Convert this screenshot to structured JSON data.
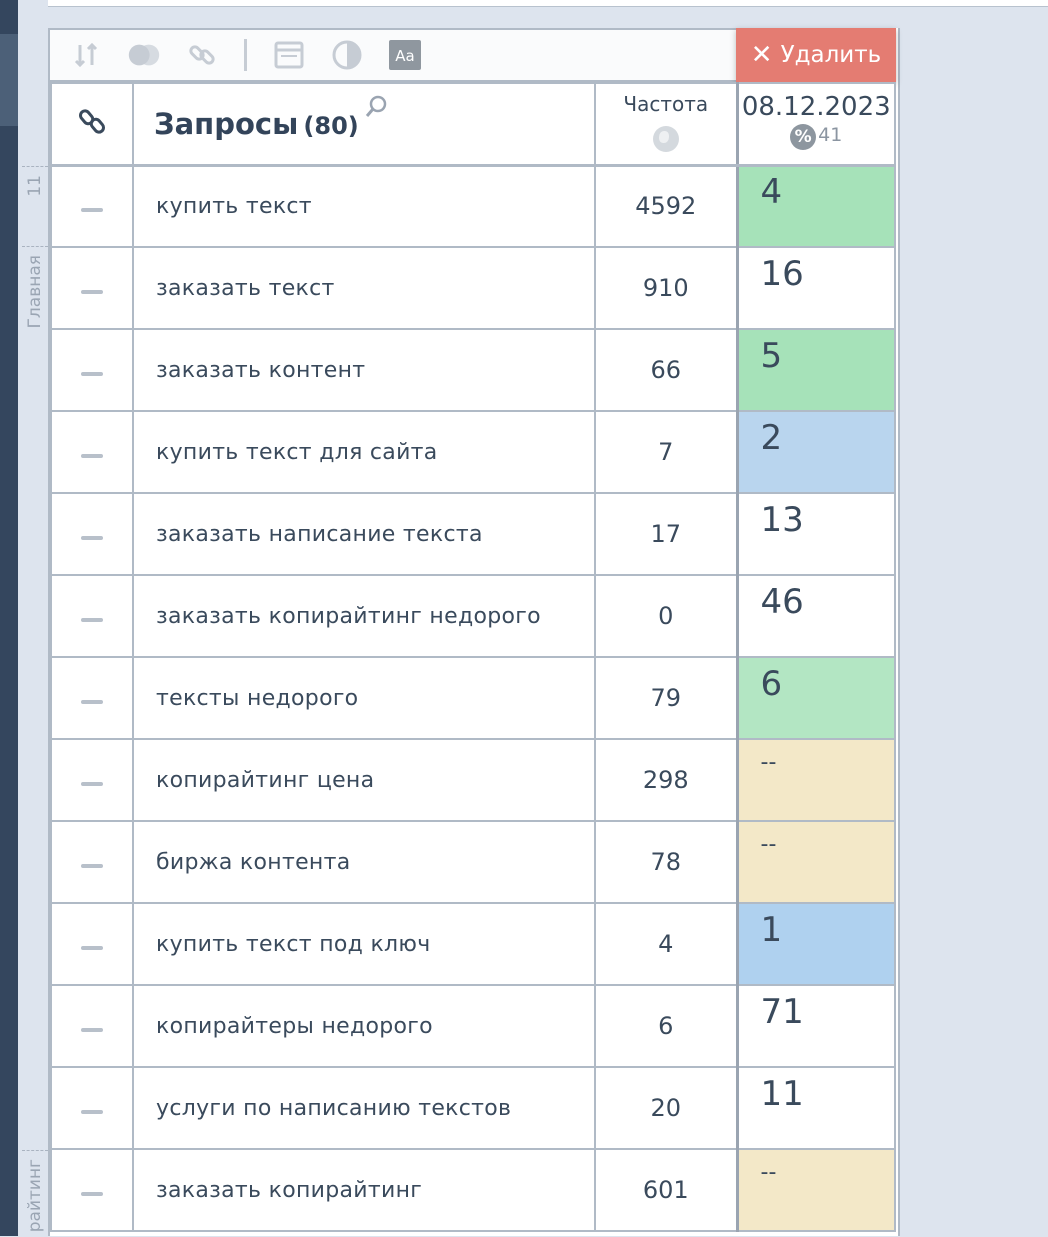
{
  "toolbar": {
    "delete_label": "Удалить",
    "icons": [
      "sort-icon",
      "toggle-icon",
      "link-icon",
      "window-icon",
      "contrast-icon",
      "font-icon"
    ],
    "font_icon_label": "Aa"
  },
  "groups": [
    {
      "label": "11"
    },
    {
      "label": "Главная"
    },
    {
      "label": "райтинг"
    }
  ],
  "header": {
    "query_title": "Запросы",
    "query_count": "(80)",
    "freq_title": "Частота",
    "date": "08.12.2023",
    "percent_symbol": "%",
    "percent_value": "41"
  },
  "colors": {
    "green": "#a6e2b9",
    "light_green": "#b3e6c3",
    "blue": "#b9d5ee",
    "sand": "#f3e8c8",
    "white": "#ffffff",
    "delete": "#e47c72"
  },
  "rows": [
    {
      "query": "купить текст",
      "freq": "4592",
      "pos": "4",
      "color": "#a6e2b9"
    },
    {
      "query": "заказать текст",
      "freq": "910",
      "pos": "16",
      "color": "#ffffff"
    },
    {
      "query": "заказать контент",
      "freq": "66",
      "pos": "5",
      "color": "#a6e2b9"
    },
    {
      "query": "купить текст для сайта",
      "freq": "7",
      "pos": "2",
      "color": "#b9d5ee"
    },
    {
      "query": "заказать написание текста",
      "freq": "17",
      "pos": "13",
      "color": "#ffffff"
    },
    {
      "query": "заказать копирайтинг недорого",
      "freq": "0",
      "pos": "46",
      "color": "#ffffff"
    },
    {
      "query": "тексты недорого",
      "freq": "79",
      "pos": "6",
      "color": "#b3e6c3"
    },
    {
      "query": "копирайтинг цена",
      "freq": "298",
      "pos": "--",
      "color": "#f3e8c8"
    },
    {
      "query": "биржа контента",
      "freq": "78",
      "pos": "--",
      "color": "#f3e8c8"
    },
    {
      "query": "купить текст под ключ",
      "freq": "4",
      "pos": "1",
      "color": "#afd1ef"
    },
    {
      "query": "копирайтеры недорого",
      "freq": "6",
      "pos": "71",
      "color": "#ffffff"
    },
    {
      "query": "услуги по написанию текстов",
      "freq": "20",
      "pos": "11",
      "color": "#ffffff"
    },
    {
      "query": "заказать копирайтинг",
      "freq": "601",
      "pos": "--",
      "color": "#f3e8c8"
    }
  ]
}
